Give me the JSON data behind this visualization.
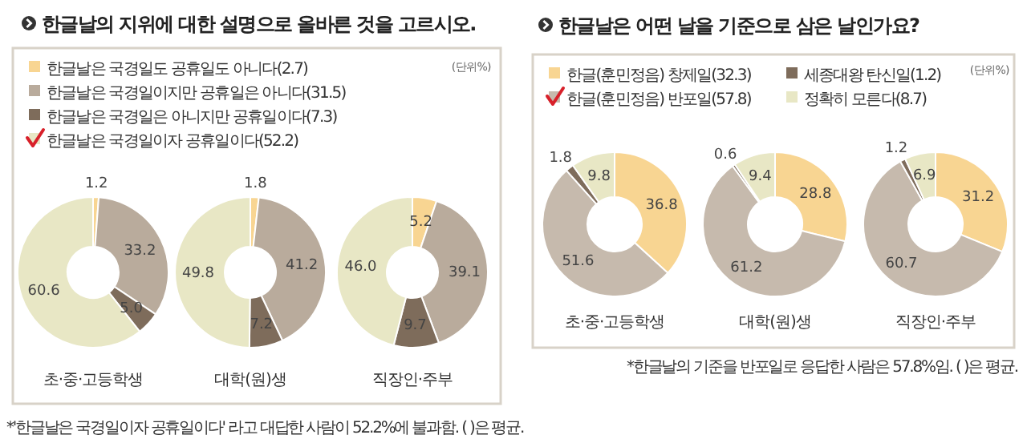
{
  "chart_data": [
    {
      "type": "donut",
      "title": "한글날의 지위에 대한 설명으로 올바른 것을 고르시오.",
      "categories": [
        "한글날은 국경일도 공휴일도 아니다(2.7)",
        "한글날은 국경일이지만 공휴일은 아니다(31.5)",
        "한글날은 국경일은 아니지만 공휴일이다(7.3)",
        "한글날은 국경일이자 공휴일이다(52.2)"
      ],
      "colors": [
        "#f8d592",
        "#b9ab9c",
        "#7e6c5b",
        "#e8e7c5"
      ],
      "series": [
        {
          "name": "초·중·고등학생",
          "values": [
            1.2,
            33.2,
            5.0,
            60.6
          ],
          "value_labels": [
            "1.2",
            "33.2",
            "5.0",
            "60.6"
          ]
        },
        {
          "name": "대학(원)생",
          "values": [
            1.8,
            41.2,
            7.2,
            49.8
          ],
          "value_labels": [
            "1.8",
            "41.2",
            "7.2",
            "49.8"
          ]
        },
        {
          "name": "직장인·주부",
          "values": [
            5.2,
            39.1,
            9.7,
            46.0
          ],
          "value_labels": [
            "5.2",
            "39.1",
            "9.7",
            "46.0"
          ]
        }
      ],
      "legend": "top",
      "annotations": [
        "(단위%)",
        "*'한글날은 국경일이자 공휴일이다' 라고 대답한 사람이 52.2%에 불과함. ( )은 평균."
      ]
    },
    {
      "type": "donut",
      "title": "한글날은 어떤 날을 기준으로 삼은 날인가요?",
      "categories": [
        "한글(훈민정음) 창제일(32.3)",
        "한글(훈민정음) 반포일(57.8)",
        "세종대왕 탄신일(1.2)",
        "정확히 모른다(8.7)"
      ],
      "colors": [
        "#f8d592",
        "#c6baad",
        "#7e6c5b",
        "#e8e7c5"
      ],
      "series": [
        {
          "name": "초·중·고등학생",
          "values": [
            36.8,
            51.6,
            1.8,
            9.8
          ]
        },
        {
          "name": "대학(원)생",
          "values": [
            28.8,
            61.2,
            0.6,
            9.4
          ]
        },
        {
          "name": "직장인·주부",
          "values": [
            31.2,
            60.7,
            1.2,
            6.9
          ]
        }
      ],
      "legend": "top",
      "data_labels": true,
      "annotations": [
        "(단위%)",
        "*한글날의 기준을 반포일로 응답한 사람은 57.8%임. ( )은 평균."
      ]
    }
  ]
}
